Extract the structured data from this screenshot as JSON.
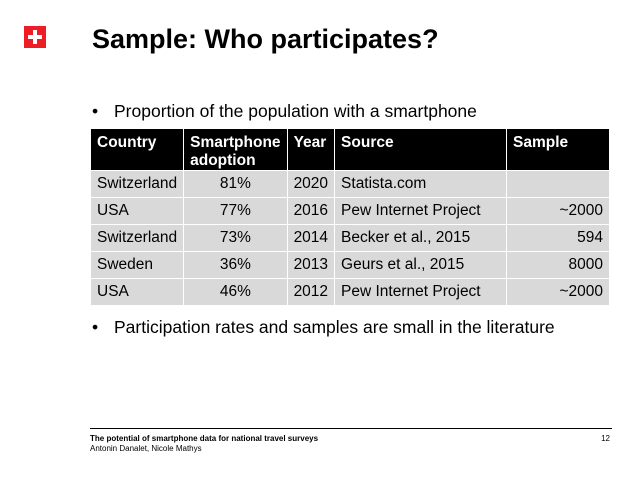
{
  "slide": {
    "title": "Sample: Who participates?",
    "bullets": [
      "Proportion of the population with a smartphone",
      "Participation rates and samples are small in the literature"
    ],
    "bullet_marker": "•"
  },
  "table": {
    "headers": [
      "Country",
      "Smartphone adoption",
      "Year",
      "Source",
      "Sample"
    ],
    "rows": [
      [
        "Switzerland",
        "81%",
        "2020",
        "Statista.com",
        ""
      ],
      [
        "USA",
        "77%",
        "2016",
        "Pew Internet Project",
        "~2000"
      ],
      [
        "Switzerland",
        "73%",
        "2014",
        "Becker et al., 2015",
        "594"
      ],
      [
        "Sweden",
        "36%",
        "2013",
        "Geurs et al., 2015",
        "8000"
      ],
      [
        "USA",
        "46%",
        "2012",
        "Pew Internet Project",
        "~2000"
      ]
    ]
  },
  "footer": {
    "title": "The potential of smartphone data for national travel surveys",
    "authors": "Antonin Danalet, Nicole Mathys",
    "page_number": "12"
  },
  "colors": {
    "logo_red": "#ee1c24",
    "header_bg": "#000000",
    "row_bg": "#d9d9d9"
  },
  "icons": {
    "logo": "swiss-cross-logo"
  }
}
